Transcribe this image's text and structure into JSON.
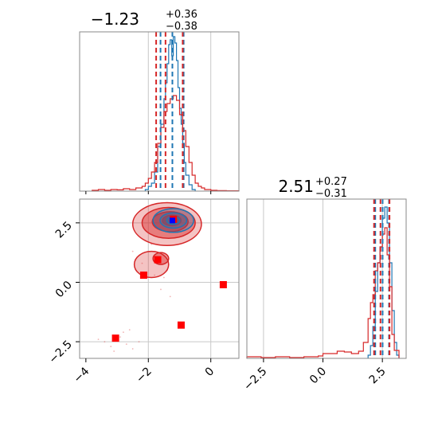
{
  "colors": {
    "blue": "#1f77b4",
    "red": "#d62728",
    "marker_red": "#ff0000",
    "marker_blue": "#0000ff",
    "grid": "#c8c8c8",
    "frame": "#888888"
  },
  "chart_data": [
    {
      "type": "histogram",
      "panel": "top-left",
      "title_main": "−1.23",
      "title_sup": "+0.36",
      "title_sub": "−0.38",
      "xlim": [
        -4.2,
        0.9
      ],
      "ylim": [
        0,
        1.0
      ],
      "xgrid": [
        -2,
        0
      ],
      "blue_quantiles": [
        -1.61,
        -1.23,
        -0.87
      ],
      "red_quantiles": [
        -1.75,
        -1.45,
        -0.9
      ],
      "series": [
        {
          "name": "",
          "color": "blue",
          "edges": [
            -2.1,
            -2.0,
            -1.9,
            -1.8,
            -1.7,
            -1.6,
            -1.5,
            -1.45,
            -1.4,
            -1.35,
            -1.3,
            -1.25,
            -1.2,
            -1.15,
            -1.1,
            -1.05,
            -1.0,
            -0.95,
            -0.9,
            -0.85,
            -0.8,
            -0.7,
            -0.6,
            -0.5
          ],
          "values": [
            0.01,
            0.03,
            0.05,
            0.12,
            0.28,
            0.42,
            0.58,
            0.68,
            0.8,
            0.92,
            0.95,
            0.85,
            0.97,
            0.93,
            0.82,
            0.65,
            0.52,
            0.42,
            0.3,
            0.18,
            0.1,
            0.04,
            0.01
          ]
        },
        {
          "name": "",
          "color": "red",
          "edges": [
            -3.8,
            -3.6,
            -3.4,
            -3.2,
            -3.0,
            -2.8,
            -2.6,
            -2.4,
            -2.2,
            -2.1,
            -2.0,
            -1.9,
            -1.8,
            -1.7,
            -1.6,
            -1.5,
            -1.4,
            -1.3,
            -1.2,
            -1.1,
            -1.0,
            -0.9,
            -0.8,
            -0.7,
            -0.6,
            -0.5,
            -0.4,
            -0.3,
            -0.2,
            0.0,
            0.2,
            0.5,
            0.9
          ],
          "values": [
            0.005,
            0.01,
            0.005,
            0.01,
            0.008,
            0.015,
            0.01,
            0.02,
            0.03,
            0.05,
            0.08,
            0.12,
            0.18,
            0.3,
            0.4,
            0.5,
            0.55,
            0.58,
            0.6,
            0.57,
            0.48,
            0.38,
            0.28,
            0.18,
            0.1,
            0.05,
            0.03,
            0.02,
            0.01,
            0.005,
            0.003,
            0.002
          ]
        }
      ]
    },
    {
      "type": "contour",
      "panel": "bottom-left",
      "xlim": [
        -4.2,
        0.9
      ],
      "ylim": [
        -3.2,
        3.5
      ],
      "xticks": [
        -4,
        -2,
        0
      ],
      "xtick_labels": [
        "−4",
        "−2",
        "0"
      ],
      "yticks": [
        2.5,
        0,
        -2.5
      ],
      "ytick_labels": [
        "2.5",
        "0.0",
        "−2.5"
      ],
      "xgrid": [
        -2,
        0
      ],
      "ygrid": [
        2.5,
        0,
        -2.5
      ],
      "red_contours": [
        {
          "cx": -1.4,
          "cy": 2.45,
          "rx": 2.2,
          "ry": 0.9,
          "level": 1
        },
        {
          "cx": -1.35,
          "cy": 2.5,
          "rx": 1.7,
          "ry": 0.65,
          "level": 2
        },
        {
          "cx": -1.3,
          "cy": 2.55,
          "rx": 1.15,
          "ry": 0.42,
          "level": 3
        },
        {
          "cx": -1.25,
          "cy": 2.6,
          "rx": 0.6,
          "ry": 0.22,
          "level": 4
        },
        {
          "cx": -1.9,
          "cy": 0.75,
          "rx": 1.1,
          "ry": 0.55,
          "level": 1
        },
        {
          "cx": -1.6,
          "cy": 1.0,
          "rx": 0.5,
          "ry": 0.25,
          "level": 2
        }
      ],
      "blue_contours": [
        {
          "cx": -1.2,
          "cy": 2.6,
          "rx": 1.3,
          "ry": 0.5
        },
        {
          "cx": -1.2,
          "cy": 2.6,
          "rx": 0.85,
          "ry": 0.32
        },
        {
          "cx": -1.2,
          "cy": 2.6,
          "rx": 0.42,
          "ry": 0.16
        }
      ],
      "red_markers": [
        {
          "x": -2.15,
          "y": 0.3
        },
        {
          "x": -1.7,
          "y": 0.95
        },
        {
          "x": -1.2,
          "y": 2.65
        },
        {
          "x": 0.4,
          "y": -0.1
        },
        {
          "x": -0.95,
          "y": -1.8
        },
        {
          "x": -3.05,
          "y": -2.35
        }
      ],
      "blue_marker": {
        "x": -1.23,
        "y": 2.6
      },
      "scatter_points": [
        {
          "x": -3.4,
          "y": -2.5
        },
        {
          "x": -3.2,
          "y": -2.7
        },
        {
          "x": -2.9,
          "y": -2.3
        },
        {
          "x": -2.7,
          "y": -2.6
        },
        {
          "x": -3.6,
          "y": -2.4
        },
        {
          "x": -2.5,
          "y": -2.8
        },
        {
          "x": -2.8,
          "y": -2.1
        },
        {
          "x": -3.1,
          "y": -2.9
        },
        {
          "x": -2.3,
          "y": -2.5
        },
        {
          "x": -1.8,
          "y": 0.3
        },
        {
          "x": -1.5,
          "y": 0.2
        },
        {
          "x": -1.6,
          "y": -0.3
        },
        {
          "x": -1.3,
          "y": -0.6
        },
        {
          "x": -2.2,
          "y": 0.8
        },
        {
          "x": -1.9,
          "y": 1.6
        },
        {
          "x": -2.5,
          "y": 1.3
        },
        {
          "x": -1.4,
          "y": 0.5
        },
        {
          "x": -2.6,
          "y": -2.0
        }
      ]
    },
    {
      "type": "histogram",
      "panel": "bottom-right",
      "title_main": "2.51",
      "title_sup": "+0.27",
      "title_sub": "−0.31",
      "xlim": [
        -3.2,
        3.5
      ],
      "ylim": [
        0,
        1.0
      ],
      "xticks": [
        -2.5,
        0,
        2.5
      ],
      "xtick_labels": [
        "−2.5",
        "0.0",
        "2.5"
      ],
      "xgrid": [
        -2.5,
        0,
        2.5
      ],
      "blue_quantiles": [
        2.2,
        2.51,
        2.78
      ],
      "red_quantiles": [
        2.15,
        2.42,
        2.8
      ],
      "series": [
        {
          "name": "",
          "color": "blue",
          "edges": [
            1.9,
            2.0,
            2.1,
            2.2,
            2.3,
            2.4,
            2.5,
            2.6,
            2.7,
            2.8,
            2.9,
            3.0,
            3.1,
            3.2
          ],
          "values": [
            0.02,
            0.08,
            0.2,
            0.42,
            0.6,
            0.7,
            0.88,
            0.95,
            0.85,
            0.6,
            0.3,
            0.1,
            0.02
          ]
        },
        {
          "name": "",
          "color": "red",
          "edges": [
            -3.2,
            -2.6,
            -2.0,
            -1.4,
            -0.8,
            -0.2,
            0.0,
            0.3,
            0.6,
            0.9,
            1.2,
            1.5,
            1.7,
            1.9,
            2.0,
            2.1,
            2.2,
            2.3,
            2.4,
            2.5,
            2.6,
            2.7,
            2.8,
            2.9,
            3.0,
            3.2
          ],
          "values": [
            0.01,
            0.005,
            0.01,
            0.005,
            0.01,
            0.015,
            0.03,
            0.03,
            0.045,
            0.04,
            0.03,
            0.045,
            0.1,
            0.25,
            0.35,
            0.4,
            0.55,
            0.6,
            0.7,
            0.78,
            0.82,
            0.65,
            0.45,
            0.15,
            0.05
          ]
        }
      ]
    }
  ]
}
